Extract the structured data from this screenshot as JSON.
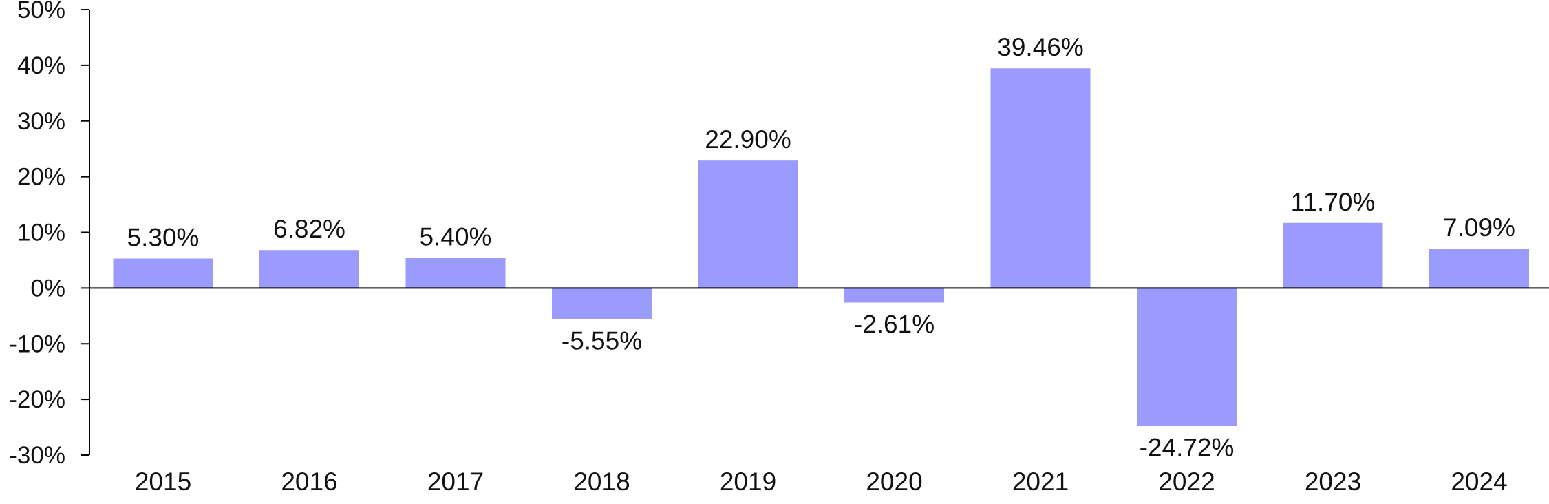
{
  "chart_data": {
    "type": "bar",
    "title": "",
    "xlabel": "",
    "ylabel": "",
    "categories": [
      "2015",
      "2016",
      "2017",
      "2018",
      "2019",
      "2020",
      "2021",
      "2022",
      "2023",
      "2024"
    ],
    "values": [
      5.3,
      6.82,
      5.4,
      -5.55,
      22.9,
      -2.61,
      39.46,
      -24.72,
      11.7,
      7.09
    ],
    "value_labels": [
      "5.30%",
      "6.82%",
      "5.40%",
      "-5.55%",
      "22.90%",
      "-2.61%",
      "39.46%",
      "-24.72%",
      "11.70%",
      "7.09%"
    ],
    "ylim": [
      -30,
      50
    ],
    "yticks": [
      50,
      40,
      30,
      20,
      10,
      0,
      -10,
      -20,
      -30
    ],
    "ytick_labels": [
      "50%",
      "40%",
      "30%",
      "20%",
      "10%",
      "0%",
      "-10%",
      "-20%",
      "-30%"
    ],
    "bar_color": "#9b9bfd",
    "axis_color": "#000000",
    "grid": false,
    "legend": false
  }
}
